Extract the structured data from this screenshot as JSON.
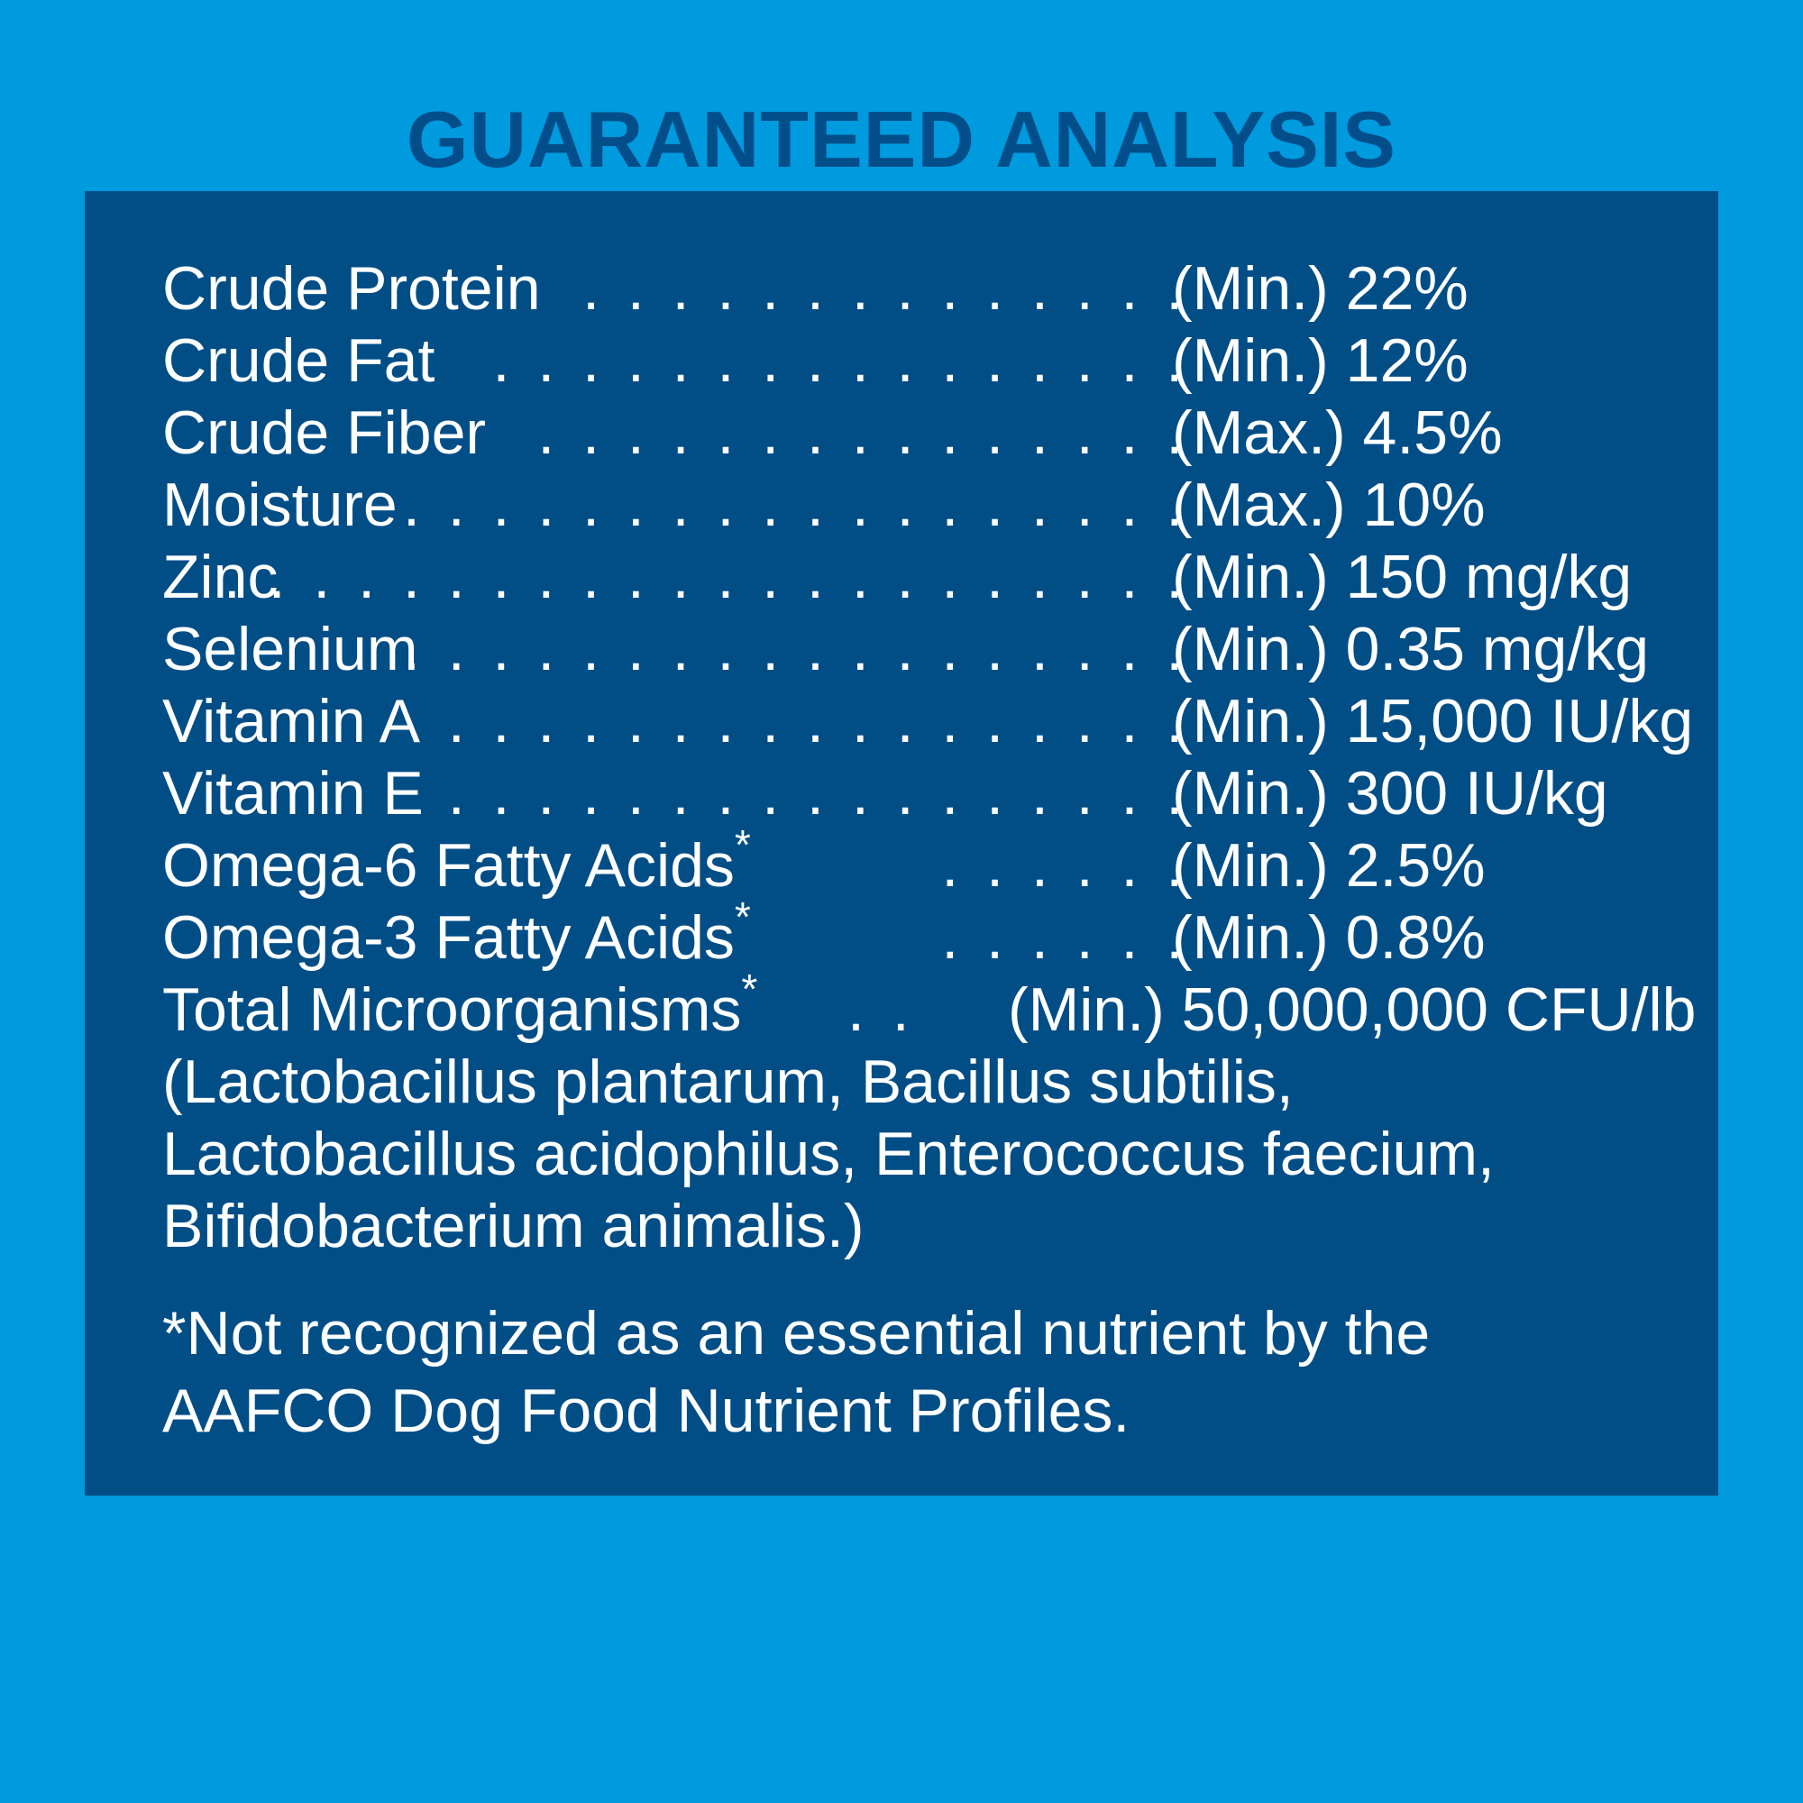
{
  "title": "GUARANTEED ANALYSIS",
  "colors": {
    "background": "#009ade",
    "panel": "#014e87",
    "title": "#014e8a",
    "text": "#ffffff"
  },
  "rows": [
    {
      "label": "Crude Protein",
      "dots": ". . . . . . . . . . . . . . .",
      "value": "(Min.) 22%"
    },
    {
      "label": "Crude Fat",
      "dots": ". . . . . . . . . . . . . . . . .",
      "value": "(Min.) 12%"
    },
    {
      "label": "Crude Fiber",
      "dots": ". . . . . . . . . . . . . . . .",
      "value": "(Max.) 4.5%"
    },
    {
      "label": "Moisture",
      "dots": ". . . . . . . . . . . . . . . . . . .",
      "value": "(Max.) 10%"
    },
    {
      "label": "Zinc",
      "dots": ". . . . . . . . . . . . . . . . . . . . . . .",
      "value": "(Min.) 150 mg/kg"
    },
    {
      "label": "Selenium",
      "dots": ". . . . . . . . . . . . . . . . . . .",
      "value": "(Min.) 0.35 mg/kg"
    },
    {
      "label": "Vitamin A",
      "dots": ". . . . . . . . . . . . . . . . . .",
      "value": "(Min.) 15,000 IU/kg"
    },
    {
      "label": "Vitamin E",
      "dots": ". . . . . . . . . . . . . . . . . .",
      "value": "(Min.) 300 IU/kg"
    },
    {
      "label": "Omega-6 Fatty Acids",
      "mark": "*",
      "dots": ". . . . . . .",
      "value": "(Min.) 2.5%"
    },
    {
      "label": "Omega-3 Fatty Acids",
      "mark": "*",
      "dots": ". . . . . . .",
      "value": "(Min.) 0.8%"
    },
    {
      "label": "Total Microorganisms",
      "mark": "*",
      "dots": ". .",
      "value": "(Min.) 50,000,000 CFU/lb"
    }
  ],
  "organisms": [
    "(Lactobacillus plantarum, Bacillus subtilis,",
    "Lactobacillus acidophilus, Enterococcus faecium,",
    "Bifidobacterium animalis.)"
  ],
  "footnote": [
    "*Not recognized as an essential nutrient by the",
    "AAFCO Dog Food Nutrient Profiles."
  ]
}
